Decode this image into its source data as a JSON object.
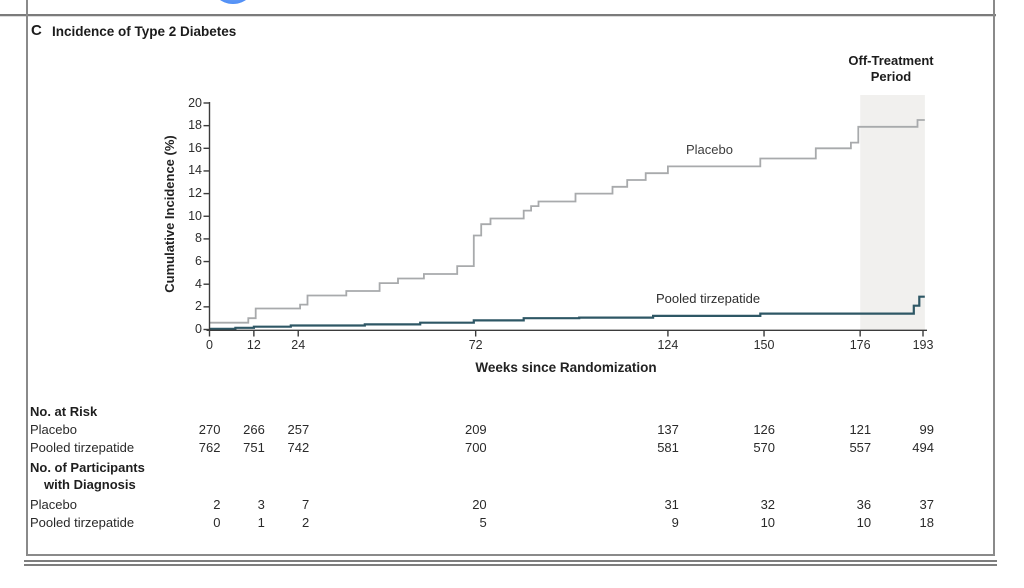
{
  "figure": {
    "panel_label": "C",
    "panel_title": "Incidence of Type 2 Diabetes",
    "off_treatment_line1": "Off-Treatment",
    "off_treatment_line2": "Period"
  },
  "chart_data": {
    "type": "line",
    "subtype": "kaplan-meier-cumulative-incidence-step",
    "title": "Incidence of Type 2 Diabetes",
    "xlabel": "Weeks since Randomization",
    "ylabel": "Cumulative Incidence (%)",
    "xlim": [
      0,
      193
    ],
    "ylim": [
      0,
      20
    ],
    "x_ticks": [
      0,
      12,
      24,
      72,
      124,
      150,
      176,
      193
    ],
    "y_ticks": [
      0,
      2,
      4,
      6,
      8,
      10,
      12,
      14,
      16,
      18,
      20
    ],
    "grid": false,
    "legend_position": "inline-labels",
    "axis_color": "#3b3b3b",
    "off_treatment_region": {
      "start_week": 176,
      "end_week": 193.5,
      "fill": "#f1f0ee"
    },
    "series": [
      {
        "name": "Placebo",
        "color": "#a8aaac",
        "width": 1.8,
        "end_week": 193.5,
        "points": [
          [
            0,
            0.6
          ],
          [
            10.5,
            1.0
          ],
          [
            12.5,
            1.85
          ],
          [
            24.5,
            2.2
          ],
          [
            26.5,
            3.0
          ],
          [
            37,
            3.4
          ],
          [
            46,
            4.1
          ],
          [
            51,
            4.5
          ],
          [
            58,
            4.9
          ],
          [
            67,
            5.6
          ],
          [
            71.5,
            8.3
          ],
          [
            73.5,
            9.3
          ],
          [
            76,
            9.8
          ],
          [
            85,
            10.5
          ],
          [
            87,
            10.9
          ],
          [
            89,
            11.3
          ],
          [
            99,
            12.0
          ],
          [
            109,
            12.6
          ],
          [
            113,
            13.2
          ],
          [
            118,
            13.8
          ],
          [
            124,
            14.4
          ],
          [
            149,
            15.1
          ],
          [
            164,
            16.0
          ],
          [
            173.5,
            16.5
          ],
          [
            175.5,
            17.9
          ],
          [
            191.5,
            18.5
          ]
        ]
      },
      {
        "name": "Pooled tirzepatide",
        "color": "#2e5765",
        "width": 2.2,
        "end_week": 193.5,
        "points": [
          [
            0,
            0.05
          ],
          [
            7,
            0.15
          ],
          [
            12,
            0.25
          ],
          [
            22,
            0.35
          ],
          [
            42,
            0.45
          ],
          [
            57,
            0.6
          ],
          [
            71.5,
            0.8
          ],
          [
            85,
            1.0
          ],
          [
            100,
            1.05
          ],
          [
            120,
            1.2
          ],
          [
            149,
            1.4
          ],
          [
            190.5,
            2.1
          ],
          [
            192,
            2.9
          ]
        ]
      }
    ],
    "risk_table": {
      "at_risk_header": "No. at Risk",
      "diagnosis_header_line1": "No. of Participants",
      "diagnosis_header_line2": "with Diagnosis",
      "columns_weeks": [
        0,
        12,
        24,
        72,
        124,
        150,
        176,
        193
      ],
      "at_risk": [
        {
          "label": "Placebo",
          "values": [
            270,
            266,
            257,
            209,
            137,
            126,
            121,
            99
          ]
        },
        {
          "label": "Pooled tirzepatide",
          "values": [
            762,
            751,
            742,
            700,
            581,
            570,
            557,
            494
          ]
        }
      ],
      "diagnosis": [
        {
          "label": "Placebo",
          "values": [
            2,
            3,
            7,
            20,
            31,
            32,
            36,
            37
          ]
        },
        {
          "label": "Pooled tirzepatide",
          "values": [
            0,
            1,
            2,
            5,
            9,
            10,
            10,
            18
          ]
        }
      ]
    }
  }
}
